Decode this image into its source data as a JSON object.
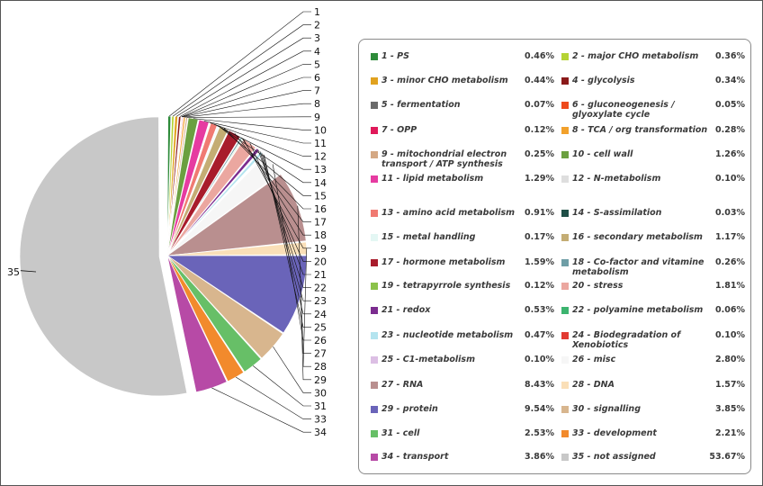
{
  "chart_data": {
    "type": "pie",
    "title": "",
    "value_unit": "%",
    "slices": [
      {
        "id": "1",
        "name": "PS",
        "value": 0.46,
        "color": "#2e8b3a"
      },
      {
        "id": "2",
        "name": "major CHO metabolism",
        "value": 0.36,
        "color": "#b5d334"
      },
      {
        "id": "3",
        "name": "minor CHO metabolism",
        "value": 0.44,
        "color": "#e1a21f"
      },
      {
        "id": "4",
        "name": "glycolysis",
        "value": 0.34,
        "color": "#8b1a1a"
      },
      {
        "id": "5",
        "name": "fermentation",
        "value": 0.07,
        "color": "#6b6b6b"
      },
      {
        "id": "6",
        "name": "gluconeogenesis / glyoxylate cycle",
        "value": 0.05,
        "color": "#ee4a1c"
      },
      {
        "id": "7",
        "name": "OPP",
        "value": 0.12,
        "color": "#e0195a"
      },
      {
        "id": "8",
        "name": "TCA / org transformation",
        "value": 0.28,
        "color": "#f2a12c"
      },
      {
        "id": "9",
        "name": "mitochondrial electron transport / ATP synthesis",
        "value": 0.25,
        "color": "#d4a884"
      },
      {
        "id": "10",
        "name": "cell wall",
        "value": 1.26,
        "color": "#6ba040"
      },
      {
        "id": "11",
        "name": "lipid metabolism",
        "value": 1.29,
        "color": "#e63ba1"
      },
      {
        "id": "12",
        "name": "N-metabolism",
        "value": 0.1,
        "color": "#dedede"
      },
      {
        "id": "13",
        "name": "amino acid metabolism",
        "value": 0.91,
        "color": "#f07a72"
      },
      {
        "id": "14",
        "name": "S-assimilation",
        "value": 0.03,
        "color": "#1f4f47"
      },
      {
        "id": "15",
        "name": "metal handling",
        "value": 0.17,
        "color": "#e4f7f4"
      },
      {
        "id": "16",
        "name": "secondary metabolism",
        "value": 1.17,
        "color": "#c4ad74"
      },
      {
        "id": "17",
        "name": "hormone metabolism",
        "value": 1.59,
        "color": "#a81c2c"
      },
      {
        "id": "18",
        "name": "Co-factor and vitamine metabolism",
        "value": 0.26,
        "color": "#6f9ea6"
      },
      {
        "id": "19",
        "name": "tetrapyrrole synthesis",
        "value": 0.12,
        "color": "#8bc24a"
      },
      {
        "id": "20",
        "name": "stress",
        "value": 1.81,
        "color": "#eba7a0"
      },
      {
        "id": "21",
        "name": "redox",
        "value": 0.53,
        "color": "#7b2c8f"
      },
      {
        "id": "22",
        "name": "polyamine metabolism",
        "value": 0.06,
        "color": "#3cb46f"
      },
      {
        "id": "23",
        "name": "nucleotide metabolism",
        "value": 0.47,
        "color": "#b4e4ef"
      },
      {
        "id": "24",
        "name": "Biodegradation of Xenobiotics",
        "value": 0.1,
        "color": "#e23a32"
      },
      {
        "id": "25",
        "name": "C1-metabolism",
        "value": 0.1,
        "color": "#dcbfe4"
      },
      {
        "id": "26",
        "name": "misc",
        "value": 2.8,
        "color": "#f6f6f6"
      },
      {
        "id": "27",
        "name": "RNA",
        "value": 8.43,
        "color": "#b98f8f"
      },
      {
        "id": "28",
        "name": "DNA",
        "value": 1.57,
        "color": "#fadfb8"
      },
      {
        "id": "29",
        "name": "protein",
        "value": 9.54,
        "color": "#6a64b9"
      },
      {
        "id": "30",
        "name": "signalling",
        "value": 3.85,
        "color": "#d8b68e"
      },
      {
        "id": "31",
        "name": "cell",
        "value": 2.53,
        "color": "#67bf67"
      },
      {
        "id": "33",
        "name": "development",
        "value": 2.21,
        "color": "#f28a2c"
      },
      {
        "id": "34",
        "name": "transport",
        "value": 3.86,
        "color": "#b74aa6"
      },
      {
        "id": "35",
        "name": "not assigned",
        "value": 53.67,
        "color": "#c8c8c8"
      }
    ],
    "pie_labels": [
      "1",
      "2",
      "3",
      "4",
      "5",
      "6",
      "7",
      "8",
      "9",
      "10",
      "11",
      "12",
      "13",
      "14",
      "15",
      "16",
      "17",
      "18",
      "19",
      "20",
      "21",
      "22",
      "23",
      "24",
      "25",
      "26",
      "27",
      "28",
      "29",
      "30",
      "31",
      "33",
      "34",
      "35"
    ],
    "legend_placement": "right"
  }
}
